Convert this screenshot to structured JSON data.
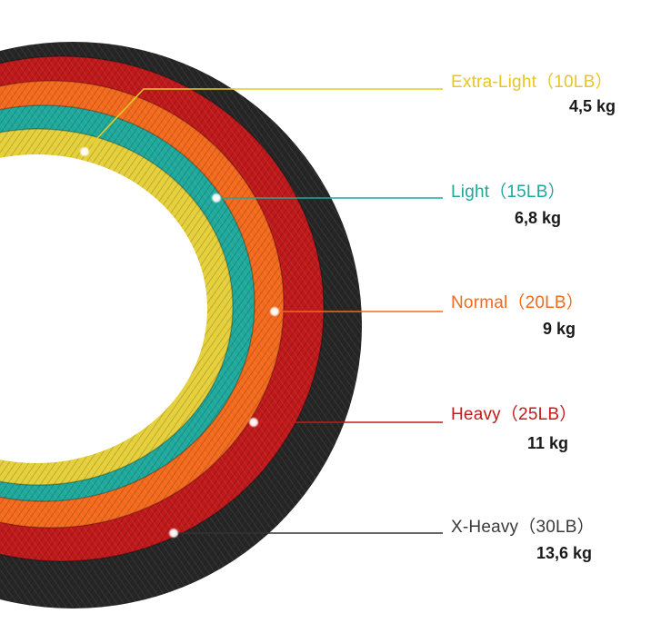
{
  "bands": [
    {
      "name": "Extra-Light（10LB）",
      "weight": "4,5 kg",
      "color": "#e8c82a"
    },
    {
      "name": "Light（15LB）",
      "weight": "6,8 kg",
      "color": "#1fa89b"
    },
    {
      "name": "Normal（20LB）",
      "weight": "9 kg",
      "color": "#f26a1b"
    },
    {
      "name": "Heavy（25LB）",
      "weight": "11 kg",
      "color": "#c41a1a"
    },
    {
      "name": "X-Heavy（30LB）",
      "weight": "13,6 kg",
      "color": "#333333"
    }
  ]
}
